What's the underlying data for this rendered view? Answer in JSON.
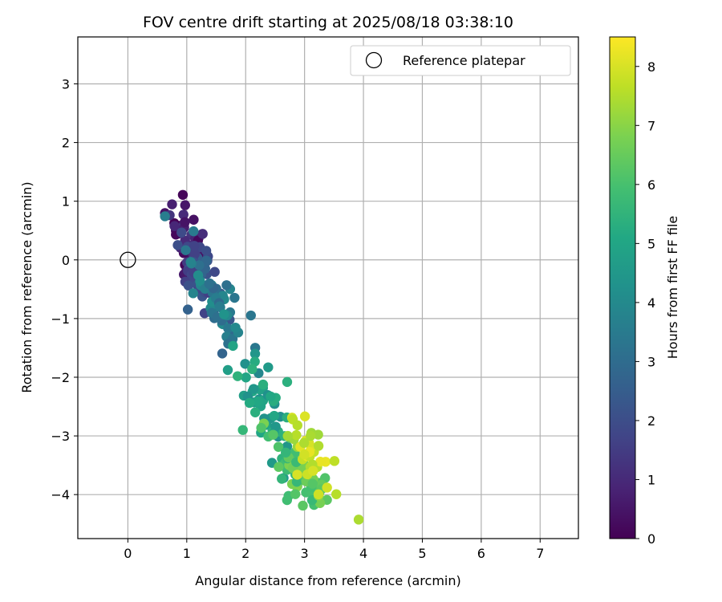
{
  "chart_data": {
    "type": "scatter",
    "title": "FOV centre drift starting at 2025/08/18 03:38:10",
    "xlabel": "Angular distance from reference (arcmin)",
    "ylabel": "Rotation from reference (arcmin)",
    "xlim": [
      -0.85,
      7.65
    ],
    "ylim": [
      -4.75,
      3.8
    ],
    "xticks": [
      0,
      1,
      2,
      3,
      4,
      5,
      6,
      7
    ],
    "yticks": [
      -4,
      -3,
      -2,
      -1,
      0,
      1,
      2,
      3
    ],
    "grid": true,
    "legend": {
      "position": "top-right",
      "entries": [
        {
          "label": "Reference platepar",
          "marker": "open-circle"
        }
      ]
    },
    "reference_point": {
      "x": 0,
      "y": 0
    },
    "colorbar": {
      "label": "Hours from first FF file",
      "range": [
        0,
        8.5
      ],
      "ticks": [
        0,
        1,
        2,
        3,
        4,
        5,
        6,
        7,
        8
      ],
      "colormap": "viridis"
    },
    "clusters": [
      {
        "hours_range": [
          0,
          1.5
        ],
        "count": 45,
        "x_center": 1.0,
        "x_spread": 0.18,
        "y_center": 0.4,
        "y_spread": 0.5,
        "tilt": -1.5
      },
      {
        "hours_range": [
          1.5,
          2.8
        ],
        "count": 45,
        "x_center": 1.2,
        "x_spread": 0.2,
        "y_center": -0.3,
        "y_spread": 0.55,
        "tilt": -1.4
      },
      {
        "hours_range": [
          2.8,
          4.2
        ],
        "count": 55,
        "x_center": 1.5,
        "x_spread": 0.25,
        "y_center": -0.7,
        "y_spread": 0.45,
        "tilt": -1.3
      },
      {
        "hours_range": [
          4.2,
          5.5
        ],
        "count": 55,
        "x_center": 2.4,
        "x_spread": 0.3,
        "y_center": -2.6,
        "y_spread": 0.55,
        "tilt": -1.3
      },
      {
        "hours_range": [
          5.5,
          7.0
        ],
        "count": 60,
        "x_center": 2.8,
        "x_spread": 0.25,
        "y_center": -3.5,
        "y_spread": 0.45,
        "tilt": -1.2
      },
      {
        "hours_range": [
          7.0,
          8.5
        ],
        "count": 40,
        "x_center": 3.1,
        "x_spread": 0.25,
        "y_center": -3.4,
        "y_spread": 0.55,
        "tilt": -1.1
      }
    ]
  }
}
